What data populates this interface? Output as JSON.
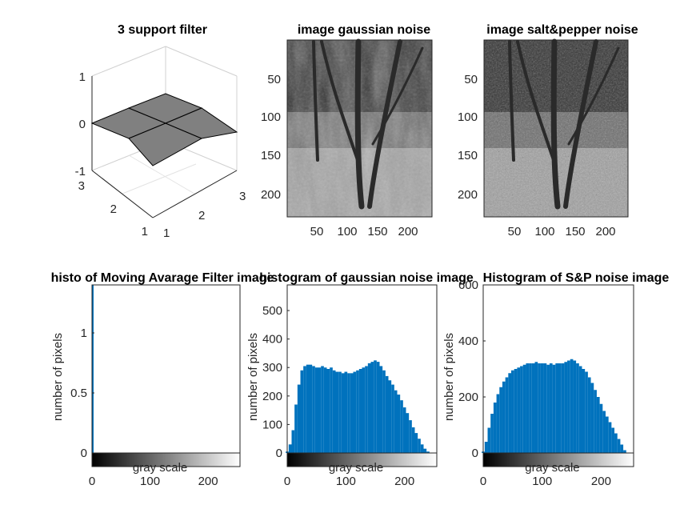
{
  "chart_data": [
    {
      "type": "surface3d",
      "title": "3 support filter",
      "x_ticks": [
        "1",
        "2",
        "3"
      ],
      "y_ticks": [
        "1",
        "2",
        "3"
      ],
      "z_ticks": [
        "-1",
        "0",
        "1"
      ],
      "x": [
        1,
        2,
        3
      ],
      "y": [
        1,
        2,
        3
      ],
      "z": [
        [
          0,
          0,
          0
        ],
        [
          0,
          0,
          0
        ],
        [
          0,
          0,
          0
        ]
      ],
      "zlim": [
        -1,
        1
      ],
      "surface_color": "#808080"
    },
    {
      "type": "image",
      "title": "image  gaussian noise",
      "x_ticks": [
        "50",
        "100",
        "150",
        "200"
      ],
      "y_ticks": [
        "50",
        "100",
        "150",
        "200"
      ],
      "xlim": [
        1,
        240
      ],
      "ylim": [
        1,
        240
      ],
      "colormap": "gray"
    },
    {
      "type": "image",
      "title": "image  salt&pepper noise",
      "x_ticks": [
        "50",
        "100",
        "150",
        "200"
      ],
      "y_ticks": [
        "50",
        "100",
        "150",
        "200"
      ],
      "xlim": [
        1,
        240
      ],
      "ylim": [
        1,
        240
      ],
      "colormap": "gray"
    },
    {
      "type": "bar",
      "title": "histo of Moving Avarage Filter image",
      "ylabel": "number of pixels",
      "colorbar_label": "gray scale",
      "x_ticks": [
        "0",
        "100",
        "200"
      ],
      "y_ticks": [
        "0",
        "0.5",
        "1"
      ],
      "xlim": [
        0,
        255
      ],
      "ylim": [
        0,
        1.4
      ],
      "bar_color": "#0072BD",
      "note_values": "single spike at gray level 0",
      "spike": {
        "x": 0,
        "y": 1.4
      }
    },
    {
      "type": "bar",
      "title": "histogram of gaussian noise image",
      "ylabel": "number of pixels",
      "colorbar_label": "gray scale",
      "x_ticks": [
        "0",
        "100",
        "200"
      ],
      "y_ticks": [
        "0",
        "100",
        "200",
        "300",
        "400",
        "500"
      ],
      "xlim": [
        0,
        255
      ],
      "ylim": [
        0,
        590
      ],
      "bar_color": "#0072BD",
      "x": [
        0,
        5,
        10,
        15,
        20,
        25,
        30,
        35,
        40,
        45,
        50,
        55,
        60,
        65,
        70,
        75,
        80,
        85,
        90,
        95,
        100,
        105,
        110,
        115,
        120,
        125,
        130,
        135,
        140,
        145,
        150,
        155,
        160,
        165,
        170,
        175,
        180,
        185,
        190,
        195,
        200,
        205,
        210,
        215,
        220,
        225,
        230,
        235,
        240,
        245,
        250,
        255
      ],
      "values": [
        5,
        30,
        80,
        170,
        240,
        290,
        305,
        310,
        310,
        305,
        300,
        300,
        305,
        300,
        295,
        300,
        290,
        285,
        285,
        280,
        285,
        280,
        280,
        285,
        290,
        295,
        300,
        305,
        315,
        320,
        325,
        320,
        305,
        290,
        270,
        255,
        240,
        220,
        205,
        185,
        160,
        140,
        115,
        90,
        70,
        50,
        30,
        15,
        5,
        0,
        0,
        0
      ]
    },
    {
      "type": "bar",
      "title": "Histogram of S&P noise image",
      "ylabel": "number of pixels",
      "colorbar_label": "gray scale",
      "x_ticks": [
        "0",
        "100",
        "200"
      ],
      "y_ticks": [
        "0",
        "200",
        "400",
        "600"
      ],
      "xlim": [
        0,
        255
      ],
      "ylim": [
        0,
        600
      ],
      "bar_color": "#0072BD",
      "x": [
        0,
        5,
        10,
        15,
        20,
        25,
        30,
        35,
        40,
        45,
        50,
        55,
        60,
        65,
        70,
        75,
        80,
        85,
        90,
        95,
        100,
        105,
        110,
        115,
        120,
        125,
        130,
        135,
        140,
        145,
        150,
        155,
        160,
        165,
        170,
        175,
        180,
        185,
        190,
        195,
        200,
        205,
        210,
        215,
        220,
        225,
        230,
        235,
        240,
        245,
        250,
        255
      ],
      "values": [
        5,
        40,
        90,
        140,
        180,
        210,
        235,
        255,
        270,
        285,
        295,
        300,
        305,
        310,
        315,
        320,
        320,
        320,
        325,
        320,
        320,
        320,
        315,
        320,
        315,
        320,
        320,
        320,
        325,
        330,
        335,
        330,
        320,
        310,
        300,
        290,
        270,
        250,
        225,
        200,
        175,
        150,
        130,
        110,
        90,
        70,
        50,
        30,
        10,
        0,
        0,
        0
      ]
    }
  ]
}
